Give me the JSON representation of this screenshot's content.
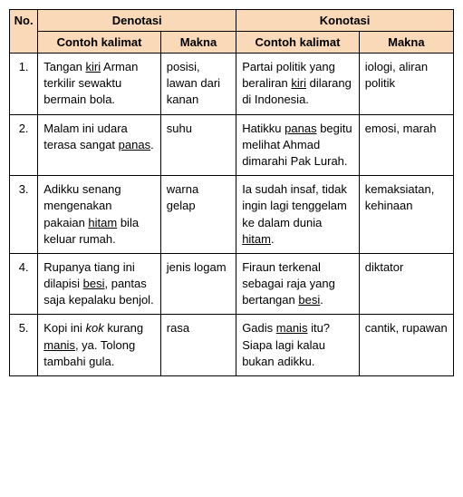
{
  "header": {
    "no": "No.",
    "denotasi": "Denotasi",
    "konotasi": "Konotasi",
    "contoh_kalimat": "Contoh kalimat",
    "contoh_kalimat2": "Contoh  kalimat",
    "makna": "Makna"
  },
  "rows": [
    {
      "no": "1.",
      "den_kalimat": "Tangan <span class=\"u\">kiri</span> Arman terkilir sewaktu bermain bola.",
      "den_makna": "posisi, lawan dari kanan",
      "kon_kalimat": "Partai politik yang beraliran <span class=\"u\">kiri</span> dilarang di Indonesia.",
      "kon_makna": "iologi, aliran politik"
    },
    {
      "no": "2.",
      "den_kalimat": "Malam ini udara terasa sangat <span class=\"u\">panas</span>.",
      "den_makna": "suhu",
      "kon_kalimat": "Hatikku <span class=\"u\">panas</span> begitu melihat Ahmad dimarahi Pak Lurah.",
      "kon_makna": "emosi, marah"
    },
    {
      "no": "3.",
      "den_kalimat": "Adikku senang mengenakan pakaian <span class=\"u\">hitam</span> bila keluar rumah.",
      "den_makna": "warna gelap",
      "kon_kalimat": "Ia sudah insaf, tidak ingin lagi tenggelam ke dalam dunia <span class=\"u\">hitam</span>.",
      "kon_makna": "kemaksiatan, kehinaan"
    },
    {
      "no": "4.",
      "den_kalimat": "Rupanya tiang ini dilapisi <span class=\"u\">besi</span>, pantas saja kepalaku benjol.",
      "den_makna": "jenis logam",
      "kon_kalimat": "Firaun terkenal sebagai raja yang bertangan <span class=\"u\">besi</span>.",
      "kon_makna": "diktator"
    },
    {
      "no": "5.",
      "den_kalimat": "Kopi ini <span class=\"i\">kok</span> kurang <span class=\"u\">manis</span>, ya. Tolong tambahi gula.",
      "den_makna": "rasa",
      "kon_kalimat": "Gadis <span class=\"u\">manis</span> itu? Siapa lagi kalau bukan adikku.",
      "kon_makna": "cantik, rupawan"
    }
  ],
  "col_widths": {
    "no": "30px",
    "den_kalimat": "130px",
    "den_makna": "80px",
    "kon_kalimat": "130px",
    "kon_makna": "100px"
  }
}
